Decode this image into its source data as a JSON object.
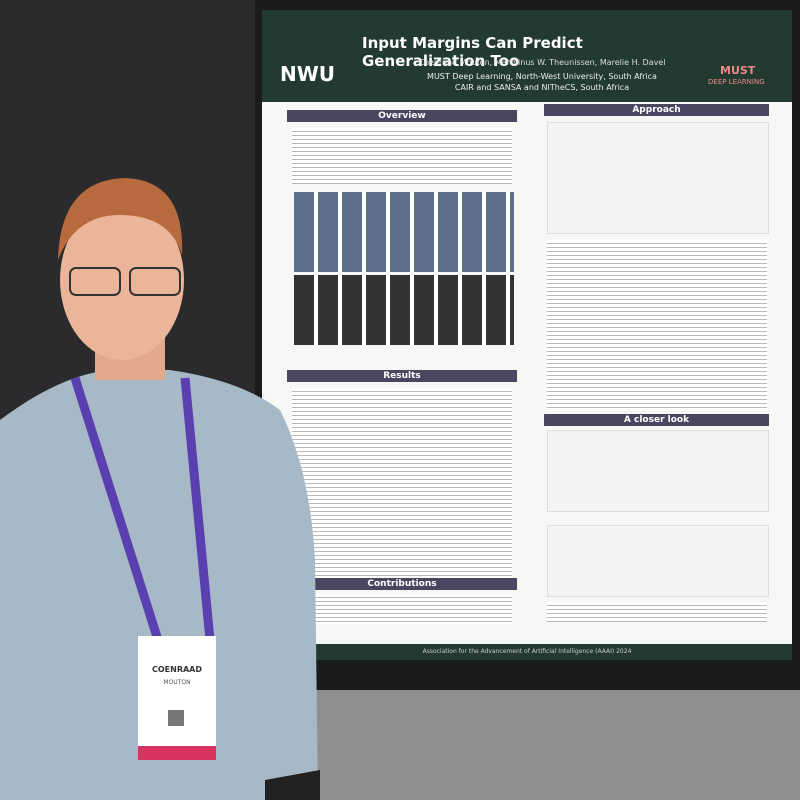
{
  "poster": {
    "title": "Input Margins Can Predict Generalization Too",
    "authors": "Coenraad Mouton, Marthinus W. Theunissen, Marelie H. Davel",
    "affiliations": [
      "MUST Deep Learning, North-West University, South Africa",
      "CAIR and SANSA and NITheCS, South Africa"
    ],
    "left_logo": "NWU",
    "right_logo": [
      "MUST",
      "DEEP LEARNING"
    ],
    "sections": [
      "Overview",
      "Results",
      "Contributions",
      "Approach",
      "A closer look"
    ],
    "footer": "Association for the Advancement of Artificial Intelligence (AAAI) 2024"
  },
  "badge": {
    "first_name": "COENRAAD",
    "last_name": "MOUTON"
  }
}
